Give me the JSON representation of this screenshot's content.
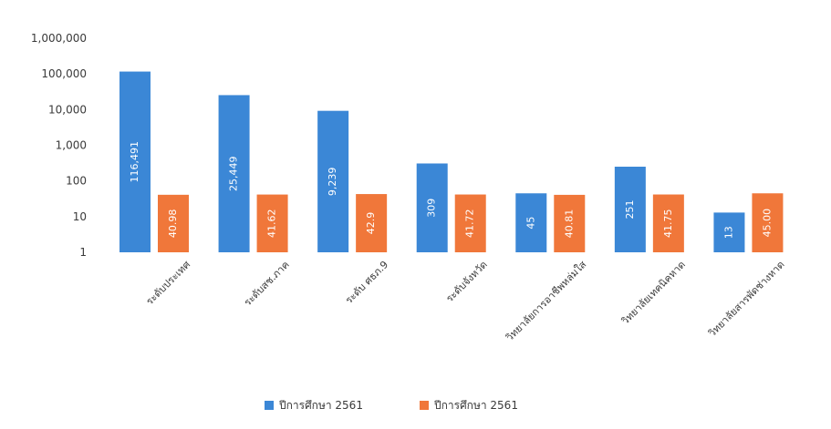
{
  "chart_data": {
    "type": "bar",
    "title": "",
    "xlabel": "",
    "ylabel": "",
    "yscale": "log",
    "ylim": [
      1,
      1000000
    ],
    "yticks": [
      "1",
      "10",
      "100",
      "1,000",
      "10,000",
      "100,000",
      "1,000,000"
    ],
    "grid": false,
    "legend_position": "bottom",
    "categories": [
      "ระดับประเทศ",
      "ระดับสช.ภาค",
      "ระดับ ศธภ.9",
      "ระดับจังหวัด",
      "วิทยาลัยการอาชีพหล่มใส",
      "วิทยาลัยเทคนิคหาด",
      "วิทยาลัยสารพัดช่างหาด"
    ],
    "series": [
      {
        "name": "ปีการศึกษา 2561",
        "color": "#3b87d6",
        "values": [
          116491,
          25449,
          9239,
          309,
          45,
          251,
          13
        ],
        "labels": [
          "116,491",
          "25,449",
          "9,239",
          "309",
          "45",
          "251",
          "13"
        ]
      },
      {
        "name": "ปีการศึกษา 2561",
        "color": "#f0773a",
        "values": [
          40.98,
          41.62,
          42.9,
          41.72,
          40.81,
          41.75,
          45
        ],
        "labels": [
          "40.98",
          "41.62",
          "42.9",
          "41.72",
          "40.81",
          "41.75",
          "45.00"
        ]
      }
    ]
  }
}
